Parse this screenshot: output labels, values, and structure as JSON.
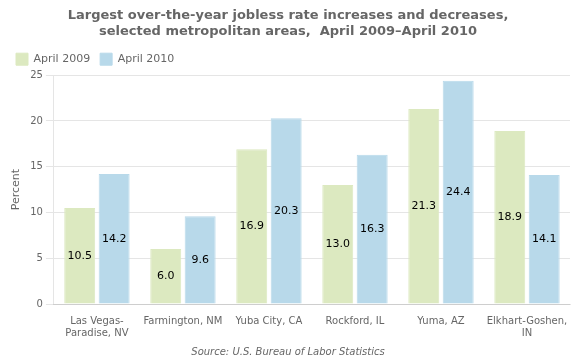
{
  "chart_data": {
    "type": "bar",
    "title": "Largest over-the-year jobless rate increases and decreases,\nselected metropolitan areas,  April 2009–April 2010",
    "categories": [
      "Las Vegas-\nParadise, NV",
      "Farmington, NM",
      "Yuba City, CA",
      "Rockford, IL",
      "Yuma, AZ",
      "Elkhart-Goshen,\nIN"
    ],
    "series": [
      {
        "name": "April 2009",
        "color": "#dce9c0",
        "values": [
          10.5,
          6.0,
          16.9,
          13.0,
          21.3,
          18.9
        ],
        "value_labels": [
          "10.5",
          "6.0",
          "16.9",
          "13.0",
          "21.3",
          "18.9"
        ]
      },
      {
        "name": "April 2010",
        "color": "#b8d9ea",
        "values": [
          14.2,
          9.6,
          20.3,
          16.3,
          24.4,
          14.1
        ],
        "value_labels": [
          "14.2",
          "9.6",
          "20.3",
          "16.3",
          "24.4",
          "14.1"
        ]
      }
    ],
    "ylabel": "Percent",
    "ylim": [
      0,
      25
    ],
    "yticks": [
      0,
      5,
      10,
      15,
      20,
      25
    ],
    "grid": true,
    "legend": "upper left",
    "data_labels": true,
    "source": "Source: U.S. Bureau of Labor Statistics"
  }
}
